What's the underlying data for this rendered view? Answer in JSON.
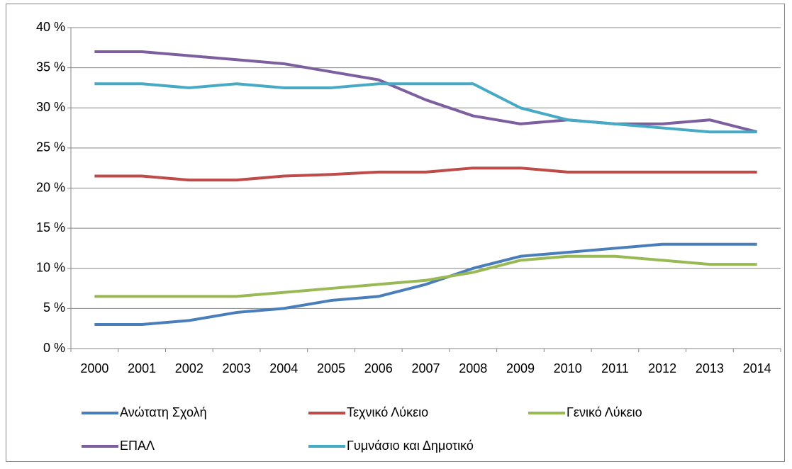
{
  "chart_data": {
    "type": "line",
    "categories": [
      "2000",
      "2001",
      "2002",
      "2003",
      "2004",
      "2005",
      "2006",
      "2007",
      "2008",
      "2009",
      "2010",
      "2011",
      "2012",
      "2013",
      "2014"
    ],
    "series": [
      {
        "name": "Ανώτατη Σχολή",
        "color": "#4a7ebb",
        "values": [
          3,
          3,
          3.5,
          4.5,
          5,
          6,
          6.5,
          8,
          10,
          11.5,
          12,
          12.5,
          13,
          13,
          13
        ]
      },
      {
        "name": "Τεχνικό Λύκειο",
        "color": "#be4b48",
        "values": [
          21.5,
          21.5,
          21,
          21,
          21.5,
          21.7,
          22,
          22,
          22.5,
          22.5,
          22,
          22,
          22,
          22,
          22
        ]
      },
      {
        "name": "Γενικό Λύκειο",
        "color": "#98b954",
        "values": [
          6.5,
          6.5,
          6.5,
          6.5,
          7,
          7.5,
          8,
          8.5,
          9.5,
          11,
          11.5,
          11.5,
          11,
          10.5,
          10.5
        ]
      },
      {
        "name": "ΕΠΑΛ",
        "color": "#7d5fa0",
        "values": [
          37,
          37,
          36.5,
          36,
          35.5,
          34.5,
          33.5,
          31,
          29,
          28,
          28.5,
          28,
          28,
          28.5,
          27
        ]
      },
      {
        "name": "Γυμνάσιο και Δημοτικό",
        "color": "#46aac5",
        "values": [
          33,
          33,
          32.5,
          33,
          32.5,
          32.5,
          33,
          33,
          33,
          30,
          28.5,
          28,
          27.5,
          27,
          27
        ]
      }
    ],
    "ylim": [
      0,
      40
    ],
    "yticks": [
      {
        "value": 0,
        "label": "0 %"
      },
      {
        "value": 5,
        "label": "5 %"
      },
      {
        "value": 10,
        "label": "10 %"
      },
      {
        "value": 15,
        "label": "15 %"
      },
      {
        "value": 20,
        "label": "20 %"
      },
      {
        "value": 25,
        "label": "25 %"
      },
      {
        "value": 30,
        "label": "30 %"
      },
      {
        "value": 35,
        "label": "35 %"
      },
      {
        "value": 40,
        "label": "40 %"
      }
    ],
    "grid": true,
    "legend": "bottom"
  }
}
